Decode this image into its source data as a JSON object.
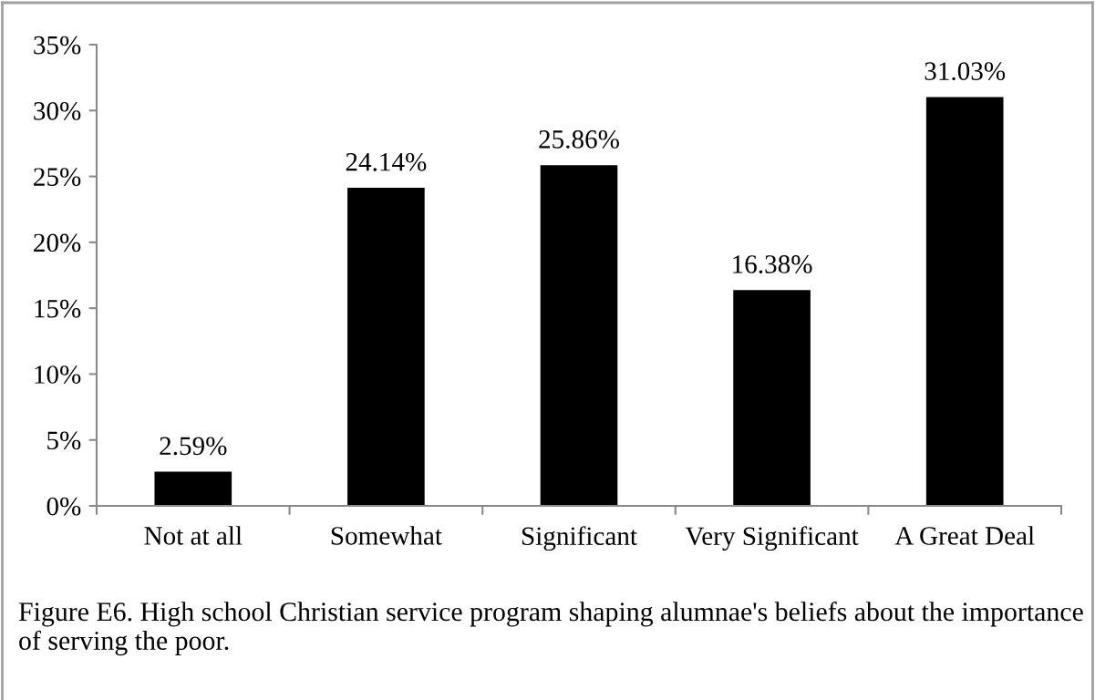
{
  "chart_data": {
    "type": "bar",
    "categories": [
      "Not at all",
      "Somewhat",
      "Significant",
      "Very Significant",
      "A Great Deal"
    ],
    "values": [
      2.59,
      24.14,
      25.86,
      16.38,
      31.03
    ],
    "value_labels": [
      "2.59%",
      "24.14%",
      "25.86%",
      "16.38%",
      "31.03%"
    ],
    "color": "#000000",
    "ylim": [
      0,
      35
    ],
    "yticks": [
      {
        "value": 0,
        "label": "0%"
      },
      {
        "value": 5,
        "label": "5%"
      },
      {
        "value": 10,
        "label": "10%"
      },
      {
        "value": 15,
        "label": "15%"
      },
      {
        "value": 20,
        "label": "20%"
      },
      {
        "value": 25,
        "label": "25%"
      },
      {
        "value": 30,
        "label": "30%"
      },
      {
        "value": 35,
        "label": "35%"
      }
    ],
    "grid": false,
    "annotations": [
      "Figure E6. High school Christian service program shaping alumnae's beliefs about the importance of serving the poor."
    ]
  }
}
